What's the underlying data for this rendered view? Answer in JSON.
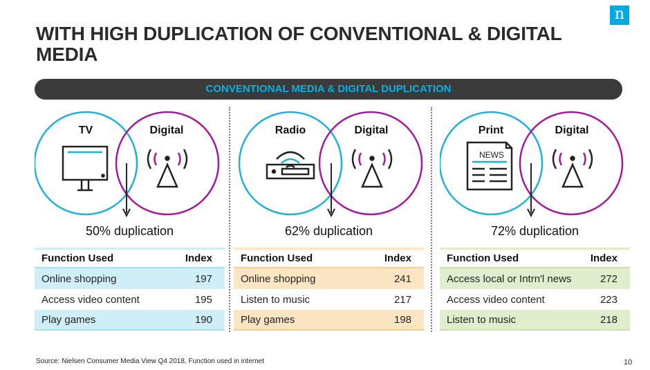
{
  "logo": {
    "glyph": "n",
    "color": "#00a9e0"
  },
  "title": "WITH HIGH DUPLICATION OF CONVENTIONAL & DIGITAL MEDIA",
  "banner": "CONVENTIONAL MEDIA & DIGITAL DUPLICATION",
  "panels": [
    {
      "left_label": "TV",
      "right_label": "Digital",
      "left_icon": "tv-icon",
      "right_icon": "broadcast-icon",
      "duplication": "50% duplication",
      "duplication_pct": 50,
      "header": {
        "function": "Function Used",
        "index": "Index"
      },
      "rows": [
        {
          "function": "Online shopping",
          "index": "197"
        },
        {
          "function": "Access video content",
          "index": "195"
        },
        {
          "function": "Play games",
          "index": "190"
        }
      ]
    },
    {
      "left_label": "Radio",
      "right_label": "Digital",
      "left_icon": "radio-icon",
      "right_icon": "broadcast-icon",
      "duplication": "62% duplication",
      "duplication_pct": 62,
      "header": {
        "function": "Function Used",
        "index": "Index"
      },
      "rows": [
        {
          "function": "Online shopping",
          "index": "241"
        },
        {
          "function": "Listen to music",
          "index": "217"
        },
        {
          "function": "Play games",
          "index": "198"
        }
      ]
    },
    {
      "left_label": "Print",
      "right_label": "Digital",
      "left_icon": "newspaper-icon",
      "right_icon": "broadcast-icon",
      "newspaper_text": "NEWS",
      "duplication": "72% duplication",
      "duplication_pct": 72,
      "header": {
        "function": "Function Used",
        "index": "Index"
      },
      "rows": [
        {
          "function": "Access local or Intrn'l news",
          "index": "272"
        },
        {
          "function": "Access video content",
          "index": "223"
        },
        {
          "function": "Listen to music",
          "index": "218"
        }
      ]
    }
  ],
  "colors": {
    "conventional": "#1fb1d8",
    "digital": "#a4199c",
    "banner_bg": "#3a3a3a",
    "banner_text": "#00b3e6"
  },
  "source": "Source: Nielsen Consumer Media View Q4 2018, Function used in internet",
  "page_number": "10"
}
